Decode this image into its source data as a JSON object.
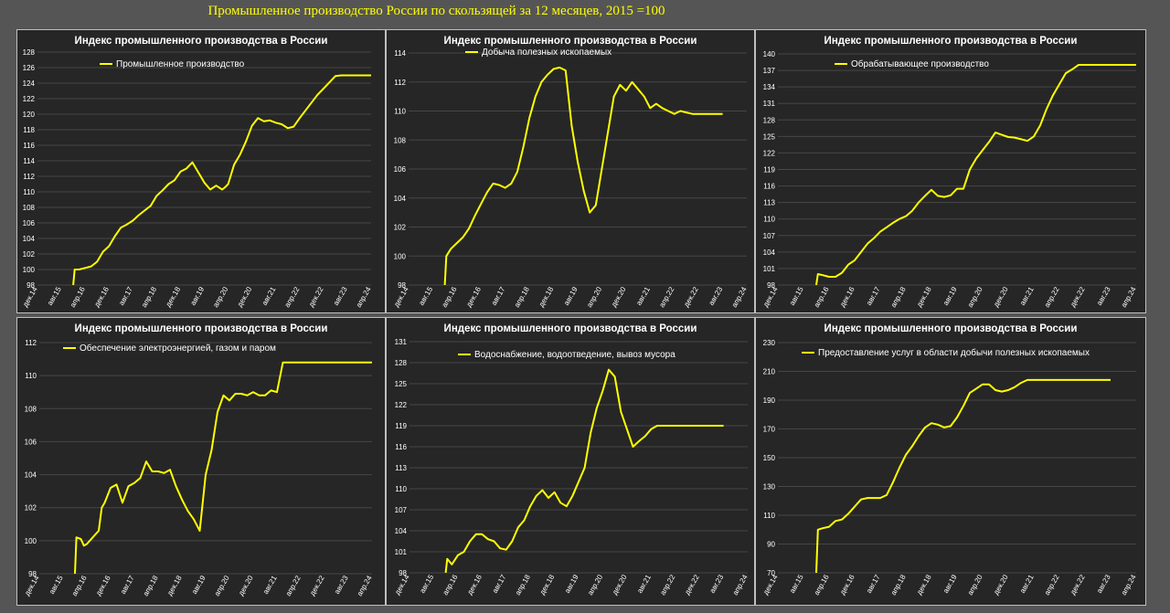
{
  "page": {
    "title": "Промышленное производство России по скользящей за 12 месяцев, 2015 =100"
  },
  "x_ticks": [
    "дек.14",
    "авг.15",
    "апр.16",
    "дек.16",
    "авг.17",
    "апр.18",
    "дек.18",
    "авг.19",
    "апр.20",
    "дек.20",
    "авг.21",
    "апр.22",
    "дек.22",
    "авг.23",
    "апр.24"
  ],
  "chart_data": [
    {
      "type": "line",
      "title": "Индекс промышленного производства в России",
      "legend": "Промышленное производство",
      "ylim": [
        98,
        128
      ],
      "yticks": [
        98,
        100,
        102,
        104,
        106,
        108,
        110,
        112,
        114,
        116,
        118,
        120,
        122,
        124,
        126,
        128
      ],
      "x_range": [
        0,
        112
      ],
      "series": [
        {
          "values_x": [
            12,
            12.5,
            14,
            16,
            17,
            18,
            20,
            22,
            24,
            26,
            28,
            30,
            32,
            34,
            36,
            38,
            40,
            42,
            44,
            46,
            48,
            50,
            52,
            54,
            56,
            58,
            60,
            62,
            63,
            64,
            66,
            68,
            70,
            72,
            74,
            76,
            78,
            80,
            82,
            84,
            86,
            88,
            90,
            92,
            94,
            96,
            98,
            100,
            102,
            104,
            106,
            108,
            110,
            111,
            112
          ],
          "values_y": [
            98,
            100,
            100,
            100.2,
            100.3,
            100.4,
            101,
            102.3,
            103,
            104.3,
            105.4,
            105.8,
            106.3,
            107,
            107.6,
            108.2,
            109.5,
            110.2,
            111,
            111.5,
            112.6,
            113,
            113.8,
            112.5,
            111.2,
            110.3,
            110.8,
            110.3,
            110.6,
            111,
            113.5,
            114.8,
            116.5,
            118.5,
            119.5,
            119.1,
            119.2,
            118.9,
            118.7,
            118.2,
            118.4,
            119.5,
            120.5,
            121.5,
            122.5,
            123.3,
            124.1,
            124.9,
            125,
            125,
            125,
            125,
            125,
            125,
            125
          ]
        }
      ]
    },
    {
      "type": "line",
      "title": "Индекс промышленного производства в России",
      "legend": "Добыча полезных ископаемых",
      "ylim": [
        98,
        114
      ],
      "yticks": [
        98,
        100,
        102,
        104,
        106,
        108,
        110,
        112,
        114
      ],
      "x_range": [
        0,
        112
      ],
      "series": [
        {
          "values_x": [
            12,
            12.5,
            14,
            16,
            18,
            20,
            22,
            24,
            26,
            28,
            30,
            32,
            34,
            36,
            38,
            40,
            42,
            44,
            46,
            48,
            50,
            52,
            54,
            56,
            58,
            60,
            62,
            64,
            66,
            68,
            70,
            72,
            74,
            76,
            78,
            80,
            82,
            84,
            86,
            88,
            90,
            92,
            94,
            96,
            98,
            100,
            102,
            104
          ],
          "values_y": [
            98,
            100,
            100.5,
            100.9,
            101.3,
            101.9,
            102.8,
            103.6,
            104.4,
            105,
            104.9,
            104.7,
            105,
            105.8,
            107.5,
            109.5,
            111,
            112,
            112.5,
            112.9,
            113,
            112.8,
            109,
            106.5,
            104.5,
            103,
            103.5,
            106,
            108.5,
            111,
            111.8,
            111.4,
            112,
            111.5,
            111,
            110.2,
            110.5,
            110.2,
            110,
            109.8,
            110,
            109.9,
            109.8,
            109.8,
            109.8,
            109.8,
            109.8,
            109.8
          ]
        }
      ]
    },
    {
      "type": "line",
      "title": "Индекс промышленного производства в России",
      "legend": "Обрабатывающее производство",
      "ylim": [
        98,
        140
      ],
      "yticks": [
        98,
        101,
        104,
        107,
        110,
        113,
        116,
        119,
        122,
        125,
        128,
        131,
        134,
        137,
        140
      ],
      "x_range": [
        0,
        112
      ],
      "series": [
        {
          "values_x": [
            12,
            12.5,
            14,
            16,
            18,
            20,
            22,
            24,
            26,
            28,
            30,
            32,
            34,
            36,
            38,
            40,
            42,
            44,
            46,
            48,
            50,
            52,
            54,
            56,
            58,
            60,
            62,
            64,
            66,
            68,
            70,
            72,
            74,
            76,
            78,
            80,
            82,
            84,
            86,
            88,
            90,
            92,
            94,
            96,
            98,
            100,
            102,
            104,
            106,
            108,
            110,
            112
          ],
          "values_y": [
            98,
            100,
            99.8,
            99.5,
            99.5,
            100.2,
            101.7,
            102.5,
            104,
            105.5,
            106.5,
            107.7,
            108.5,
            109.3,
            110,
            110.5,
            111.5,
            113,
            114.2,
            115.3,
            114.2,
            114,
            114.3,
            115.5,
            115.5,
            119,
            121,
            122.5,
            124,
            125.7,
            125.3,
            124.9,
            124.8,
            124.5,
            124.2,
            125,
            127,
            130,
            132.5,
            134.5,
            136.5,
            137.2,
            138,
            138,
            138,
            138,
            138,
            138,
            138,
            138,
            138,
            138
          ]
        }
      ]
    },
    {
      "type": "line",
      "title": "Индекс промышленного производства в России",
      "legend": "Обеспечение электроэнергией, газом и паром",
      "ylim": [
        98,
        112
      ],
      "yticks": [
        98,
        100,
        102,
        104,
        106,
        108,
        110,
        112
      ],
      "x_range": [
        0,
        112
      ],
      "series": [
        {
          "values_x": [
            12,
            12.5,
            14,
            15,
            16,
            18,
            20,
            21,
            22,
            24,
            26,
            28,
            30,
            32,
            34,
            36,
            38,
            40,
            42,
            44,
            46,
            48,
            50,
            52,
            54,
            56,
            58,
            60,
            62,
            64,
            66,
            68,
            70,
            72,
            74,
            76,
            78,
            80,
            82,
            84,
            86,
            88,
            90,
            92,
            94,
            96,
            98,
            100,
            102,
            104,
            106,
            108,
            110,
            112
          ],
          "values_y": [
            98,
            100.2,
            100.1,
            99.7,
            99.8,
            100.2,
            100.6,
            102,
            102.3,
            103.2,
            103.4,
            102.3,
            103.3,
            103.5,
            103.8,
            104.8,
            104.2,
            104.2,
            104.1,
            104.3,
            103.3,
            102.5,
            101.8,
            101.3,
            100.6,
            104,
            105.5,
            107.8,
            108.8,
            108.5,
            108.9,
            108.9,
            108.8,
            109,
            108.8,
            108.8,
            109.1,
            109,
            110.8,
            110.8,
            110.8,
            110.8,
            110.8,
            110.8,
            110.8,
            110.8,
            110.8,
            110.8,
            110.8,
            110.8,
            110.8,
            110.8,
            110.8,
            110.8
          ]
        }
      ]
    },
    {
      "type": "line",
      "title": "Индекс промышленного производства в России",
      "legend": "Водоснабжение, водоотведение, вывоз мусора",
      "ylim": [
        98,
        131
      ],
      "yticks": [
        98,
        101,
        104,
        107,
        110,
        113,
        116,
        119,
        122,
        125,
        128,
        131
      ],
      "x_range": [
        0,
        112
      ],
      "series": [
        {
          "values_x": [
            12,
            12.5,
            14,
            16,
            18,
            20,
            22,
            24,
            26,
            28,
            30,
            32,
            34,
            36,
            38,
            40,
            42,
            44,
            46,
            48,
            50,
            52,
            54,
            56,
            58,
            60,
            62,
            64,
            66,
            68,
            70,
            72,
            74,
            76,
            78,
            80,
            82,
            84,
            86,
            88,
            90,
            92,
            94,
            96,
            98,
            100,
            102,
            104
          ],
          "values_y": [
            98,
            100,
            99.2,
            100.5,
            101,
            102.5,
            103.5,
            103.5,
            102.8,
            102.5,
            101.5,
            101.3,
            102.5,
            104.5,
            105.5,
            107.5,
            109,
            109.8,
            108.7,
            109.5,
            108,
            107.5,
            109,
            111,
            113,
            118,
            121.5,
            124,
            127,
            126,
            121,
            118.5,
            116,
            116.8,
            117.5,
            118.5,
            119,
            119,
            119,
            119,
            119,
            119,
            119,
            119,
            119,
            119,
            119,
            119
          ]
        }
      ]
    },
    {
      "type": "line",
      "title": "Индекс промышленного производства в России",
      "legend": "Предоставление услуг в области добычи полезных ископаемых",
      "ylim": [
        70,
        230
      ],
      "yticks": [
        70,
        90,
        110,
        130,
        150,
        170,
        190,
        210,
        230
      ],
      "x_range": [
        0,
        112
      ],
      "series": [
        {
          "values_x": [
            12,
            12.5,
            14,
            16,
            18,
            20,
            22,
            24,
            26,
            28,
            30,
            32,
            34,
            36,
            38,
            40,
            42,
            44,
            46,
            48,
            50,
            52,
            54,
            56,
            58,
            60,
            62,
            64,
            66,
            68,
            70,
            72,
            74,
            76,
            78,
            80,
            82,
            84,
            86,
            88,
            90,
            92,
            94,
            96,
            98,
            100,
            102,
            104
          ],
          "values_y": [
            70,
            100,
            101,
            102,
            106,
            107,
            111,
            116,
            121,
            122,
            122,
            122,
            124,
            133,
            143,
            152,
            158,
            165,
            171,
            174,
            173,
            171,
            172,
            178,
            186,
            195,
            198,
            201,
            201,
            197,
            196,
            197,
            199,
            202,
            204,
            204,
            204,
            204,
            204,
            204,
            204,
            204,
            204,
            204,
            204,
            204,
            204,
            204
          ]
        }
      ]
    }
  ]
}
